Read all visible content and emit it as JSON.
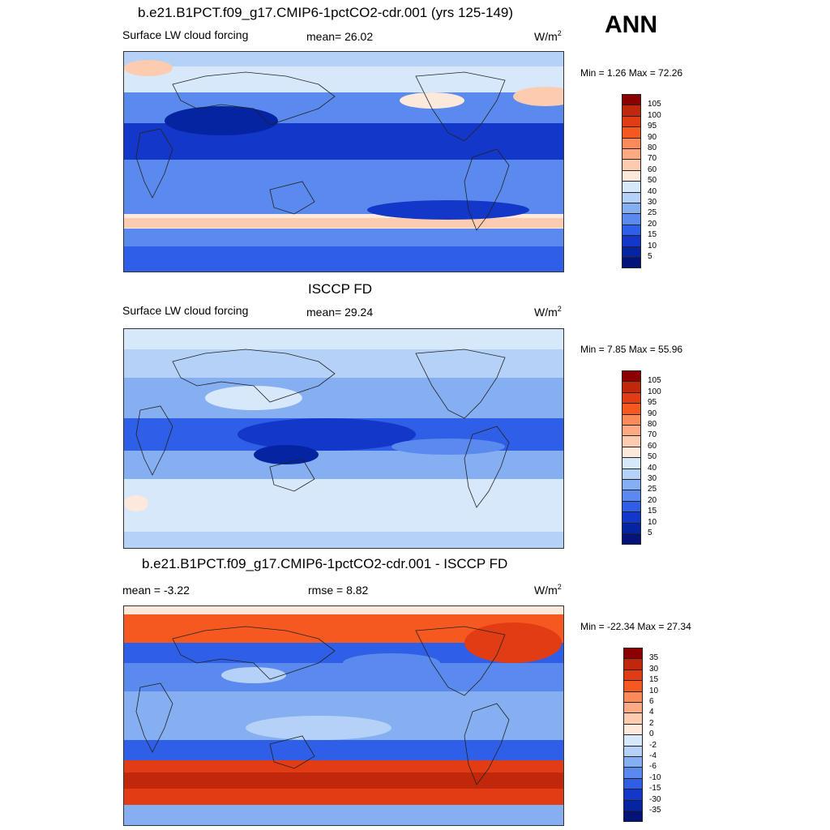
{
  "season": "ANN",
  "panels": [
    {
      "title": "b.e21.B1PCT.f09_g17.CMIP6-1pctCO2-cdr.001 (yrs 125-149)",
      "left_label": "Surface LW cloud forcing",
      "center_label": "mean=  26.02",
      "unit_base": "W/m",
      "unit_exp": "2",
      "minmax": "Min =   1.26 Max =  72.26",
      "colorbar": {
        "ticks": [
          "105",
          "100",
          "95",
          "90",
          "80",
          "70",
          "60",
          "50",
          "40",
          "30",
          "25",
          "20",
          "15",
          "10",
          "5"
        ],
        "colors": [
          "#8b0000",
          "#c1270b",
          "#e23c14",
          "#f5591f",
          "#fa8a5a",
          "#fdaa84",
          "#fdcbb0",
          "#fde8dc",
          "#d7e8fb",
          "#b5d1f7",
          "#86aff2",
          "#5a8aee",
          "#2f5fe6",
          "#1338c9",
          "#0524a2",
          "#04137a"
        ]
      }
    },
    {
      "title": "ISCCP FD",
      "left_label": "Surface LW cloud forcing",
      "center_label": "mean=  29.24",
      "unit_base": "W/m",
      "unit_exp": "2",
      "minmax": "Min =   7.85 Max =  55.96",
      "colorbar": {
        "ticks": [
          "105",
          "100",
          "95",
          "90",
          "80",
          "70",
          "60",
          "50",
          "40",
          "30",
          "25",
          "20",
          "15",
          "10",
          "5"
        ],
        "colors": [
          "#8b0000",
          "#c1270b",
          "#e23c14",
          "#f5591f",
          "#fa8a5a",
          "#fdaa84",
          "#fdcbb0",
          "#fde8dc",
          "#d7e8fb",
          "#b5d1f7",
          "#86aff2",
          "#5a8aee",
          "#2f5fe6",
          "#1338c9",
          "#0524a2",
          "#04137a"
        ]
      }
    },
    {
      "title": "b.e21.B1PCT.f09_g17.CMIP6-1pctCO2-cdr.001 - ISCCP FD",
      "left_label": "mean =  -3.22",
      "center_label": "rmse =   8.82",
      "unit_base": "W/m",
      "unit_exp": "2",
      "minmax": "Min = -22.34 Max =  27.34",
      "colorbar": {
        "ticks": [
          "35",
          "30",
          "15",
          "10",
          "6",
          "4",
          "2",
          "0",
          "-2",
          "-4",
          "-6",
          "-10",
          "-15",
          "-30",
          "-35"
        ],
        "colors": [
          "#8b0000",
          "#c1270b",
          "#e23c14",
          "#f5591f",
          "#fa8a5a",
          "#fdaa84",
          "#fdcbb0",
          "#fde8dc",
          "#d7e8fb",
          "#b5d1f7",
          "#86aff2",
          "#5a8aee",
          "#2f5fe6",
          "#1338c9",
          "#0524a2",
          "#04137a"
        ]
      }
    }
  ]
}
